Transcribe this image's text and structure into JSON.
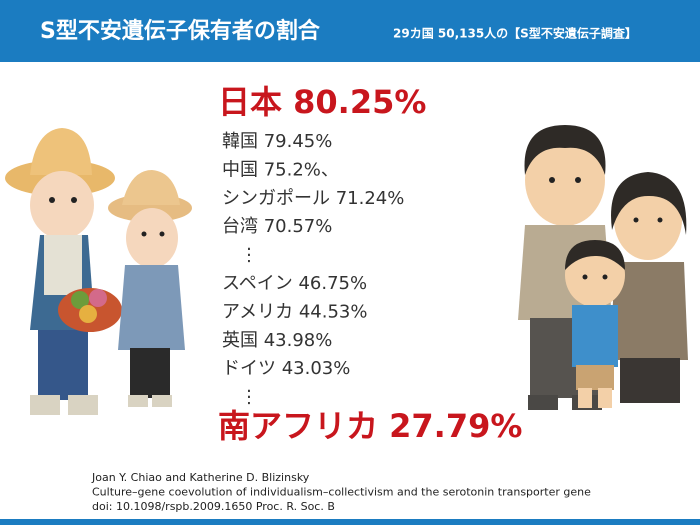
{
  "header": {
    "title": "S型不安遺伝子保有者の割合",
    "subtitle": "29カ国 50,135人の【S型不安遺伝子調査】"
  },
  "highlight_top": "日本 80.25%",
  "items": [
    "韓国 79.45%",
    "中国 75.2%、",
    "シンガポール 71.24%",
    "台湾 70.57%",
    "⋮",
    "スペイン 46.75%",
    "アメリカ 44.53%",
    "英国 43.98%",
    "ドイツ 43.03%",
    "⋮"
  ],
  "highlight_bottom": "南アフリカ 27.79%",
  "citation": [
    "Joan Y. Chiao and Katherine D. Blizinsky",
    "Culture–gene coevolution of individualism–collectivism and the serotonin transporter gene",
    "doi: 10.1098/rspb.2009.1650 Proc. R. Soc. B"
  ]
}
